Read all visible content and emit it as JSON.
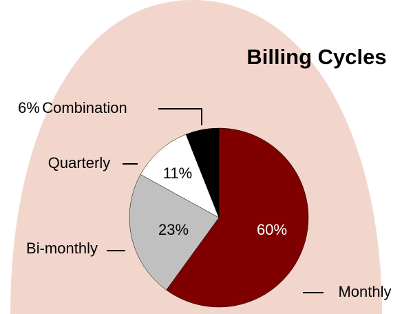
{
  "chart_data": {
    "type": "pie",
    "title": "Billing Cycles",
    "categories": [
      "Monthly",
      "Bi-monthly",
      "Quarterly",
      "Combination"
    ],
    "values": [
      60,
      23,
      11,
      6
    ],
    "value_labels": [
      "60%",
      "23%",
      "11%",
      "6%"
    ],
    "colors": [
      "#800000",
      "#c0c0c0",
      "#ffffff",
      "#000000"
    ]
  }
}
